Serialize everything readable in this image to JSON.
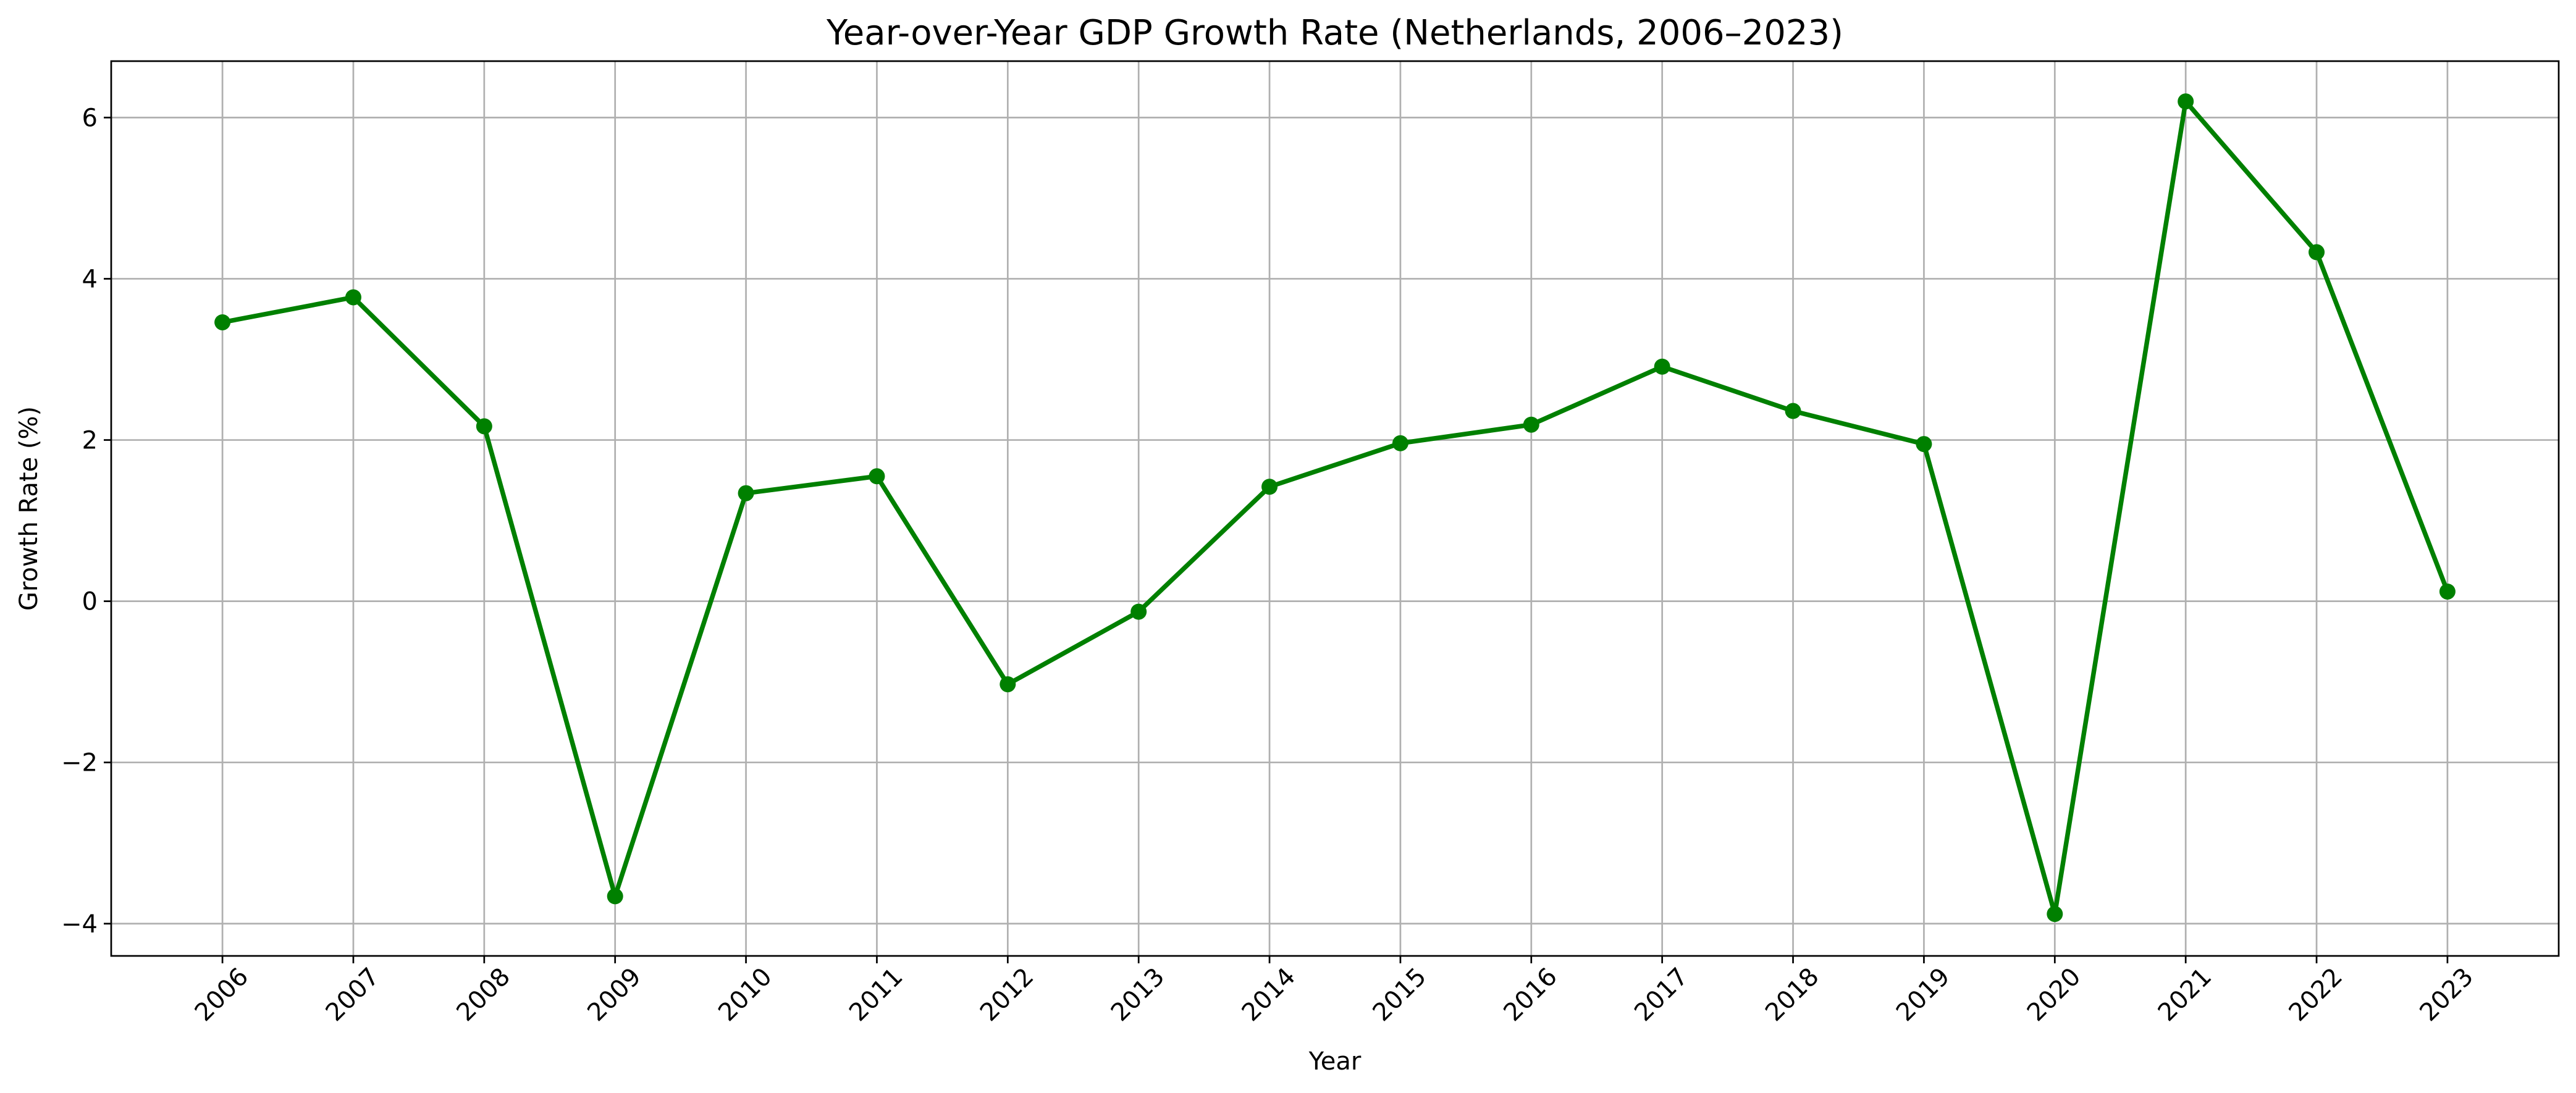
{
  "chart_data": {
    "type": "line",
    "title": "Year-over-Year GDP Growth Rate (Netherlands, 2006–2023)",
    "xlabel": "Year",
    "ylabel": "Growth Rate (%)",
    "categories": [
      "2006",
      "2007",
      "2008",
      "2009",
      "2010",
      "2011",
      "2012",
      "2013",
      "2014",
      "2015",
      "2016",
      "2017",
      "2018",
      "2019",
      "2020",
      "2021",
      "2022",
      "2023"
    ],
    "series": [
      {
        "values": [
          3.46,
          3.77,
          2.17,
          -3.66,
          1.34,
          1.55,
          -1.03,
          -0.13,
          1.42,
          1.96,
          2.19,
          2.91,
          2.36,
          1.95,
          -3.88,
          6.2,
          4.33,
          0.12
        ]
      }
    ],
    "ylim": [
      -4.4,
      6.7
    ],
    "yticks": [
      -4,
      -2,
      0,
      2,
      4,
      6
    ],
    "ytick_labels": [
      "−4",
      "−2",
      "0",
      "2",
      "4",
      "6"
    ],
    "x_tick_rotation_deg": 45,
    "grid": true,
    "legend": "none",
    "colors": {
      "line": "#008000",
      "marker": "#008000"
    }
  }
}
